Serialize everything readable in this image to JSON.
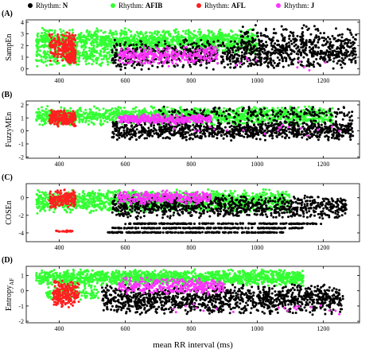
{
  "chart_data": {
    "type": "scatter",
    "legend": {
      "prefix": "Rhythm:",
      "placement": "top",
      "items": [
        {
          "name": "N",
          "color": "#000000"
        },
        {
          "name": "AFIB",
          "color": "#33ff33"
        },
        {
          "name": "AFL",
          "color": "#ff2020"
        },
        {
          "name": "J",
          "color": "#ff33ff"
        }
      ]
    },
    "xlabel": "mean RR interval (ms)",
    "xlim": [
      300,
      1310
    ],
    "xticks": [
      400,
      600,
      800,
      1000,
      1200
    ],
    "panels": [
      {
        "letter": "(A)",
        "ylabel": "SampEn",
        "ylabel_sub": "",
        "ylim": [
          -0.5,
          4.2
        ],
        "yticks": [
          0,
          1,
          2,
          3,
          4
        ],
        "series": [
          {
            "name": "AFIB",
            "color": "#33ff33",
            "clusters": [
              {
                "x": [
                  330,
                  1000
                ],
                "y": [
                  1.3,
                  3.5
                ],
                "n": 1400,
                "dist": "uniform"
              },
              {
                "x": [
                  330,
                  560
                ],
                "y": [
                  0.2,
                  2.0
                ],
                "n": 250,
                "dist": "uniform"
              }
            ]
          },
          {
            "name": "N",
            "color": "#000000",
            "clusters": [
              {
                "x": [
                  560,
                  1300
                ],
                "y": [
                  -0.1,
                  2.6
                ],
                "n": 900,
                "dist": "uniform"
              },
              {
                "x": [
                  950,
                  1300
                ],
                "y": [
                  1.0,
                  3.8
                ],
                "n": 250,
                "dist": "uniform"
              }
            ]
          },
          {
            "name": "AFL",
            "color": "#ff2020",
            "clusters": [
              {
                "x": [
                  370,
                  450
                ],
                "y": [
                  0.6,
                  3.2
                ],
                "n": 220,
                "dist": "uniform"
              },
              {
                "x": [
                  420,
                  450
                ],
                "y": [
                  0.4,
                  1.6
                ],
                "n": 60,
                "dist": "uniform"
              }
            ]
          },
          {
            "name": "J",
            "color": "#ff33ff",
            "clusters": [
              {
                "x": [
                  580,
                  880
                ],
                "y": [
                  0.3,
                  2.0
                ],
                "n": 320,
                "dist": "uniform"
              },
              {
                "x": [
                  700,
                  1230
                ],
                "y": [
                  -0.2,
                  1.2
                ],
                "n": 20,
                "dist": "uniform"
              }
            ]
          }
        ]
      },
      {
        "letter": "(B)",
        "ylabel": "FuzzyMEn",
        "ylabel_sub": "",
        "ylim": [
          -2.1,
          2.3
        ],
        "yticks": [
          -2,
          -1,
          0,
          1,
          2
        ],
        "series": [
          {
            "name": "AFIB",
            "color": "#33ff33",
            "clusters": [
              {
                "x": [
                  330,
                  1230
                ],
                "y": [
                  0.4,
                  1.9
                ],
                "n": 1400,
                "dist": "uniform"
              }
            ]
          },
          {
            "name": "N",
            "color": "#000000",
            "clusters": [
              {
                "x": [
                  560,
                  1290
                ],
                "y": [
                  -0.8,
                  0.9
                ],
                "n": 1000,
                "dist": "uniform"
              },
              {
                "x": [
                  700,
                  1290
                ],
                "y": [
                  0.8,
                  1.9
                ],
                "n": 200,
                "dist": "uniform"
              }
            ]
          },
          {
            "name": "AFL",
            "color": "#ff2020",
            "clusters": [
              {
                "x": [
                  370,
                  450
                ],
                "y": [
                  0.3,
                  1.7
                ],
                "n": 220,
                "dist": "uniform"
              }
            ]
          },
          {
            "name": "J",
            "color": "#ff33ff",
            "clusters": [
              {
                "x": [
                  580,
                  860
                ],
                "y": [
                  0.5,
                  1.3
                ],
                "n": 320,
                "dist": "uniform"
              },
              {
                "x": [
                  700,
                  1270
                ],
                "y": [
                  -0.5,
                  0.8
                ],
                "n": 20,
                "dist": "uniform"
              }
            ]
          }
        ]
      },
      {
        "letter": "(C)",
        "ylabel": "COSEn",
        "ylabel_sub": "",
        "ylim": [
          -5.0,
          1.6
        ],
        "yticks": [
          -4,
          -2,
          0
        ],
        "series": [
          {
            "name": "AFIB",
            "color": "#33ff33",
            "clusters": [
              {
                "x": [
                  330,
                  1100
                ],
                "y": [
                  -1.8,
                  1.0
                ],
                "n": 1400,
                "dist": "uniform"
              }
            ]
          },
          {
            "name": "N",
            "color": "#000000",
            "clusters": [
              {
                "x": [
                  560,
                  1270
                ],
                "y": [
                  -2.4,
                  0.4
                ],
                "n": 900,
                "dist": "uniform"
              },
              {
                "x": [
                  600,
                  1200
                ],
                "y": [
                  -3.0,
                  -2.9
                ],
                "n": 200,
                "dist": "uniform"
              },
              {
                "x": [
                  560,
                  1140
                ],
                "y": [
                  -3.5,
                  -3.4
                ],
                "n": 200,
                "dist": "uniform"
              },
              {
                "x": [
                  540,
                  1080
                ],
                "y": [
                  -4.0,
                  -3.9
                ],
                "n": 200,
                "dist": "uniform"
              }
            ]
          },
          {
            "name": "AFL",
            "color": "#ff2020",
            "clusters": [
              {
                "x": [
                  370,
                  450
                ],
                "y": [
                  -1.2,
                  1.0
                ],
                "n": 180,
                "dist": "uniform"
              },
              {
                "x": [
                  390,
                  440
                ],
                "y": [
                  -3.9,
                  -3.7
                ],
                "n": 25,
                "dist": "uniform"
              }
            ]
          },
          {
            "name": "J",
            "color": "#ff33ff",
            "clusters": [
              {
                "x": [
                  580,
                  860
                ],
                "y": [
                  -0.8,
                  0.9
                ],
                "n": 300,
                "dist": "uniform"
              }
            ]
          }
        ]
      },
      {
        "letter": "(D)",
        "ylabel": "Entropy",
        "ylabel_sub": "AF",
        "ylim": [
          -2.1,
          1.6
        ],
        "yticks": [
          -2,
          -1,
          0,
          1
        ],
        "series": [
          {
            "name": "AFIB",
            "color": "#33ff33",
            "clusters": [
              {
                "x": [
                  330,
                  1140
                ],
                "y": [
                  0.3,
                  1.4
                ],
                "n": 1500,
                "dist": "uniform"
              },
              {
                "x": [
                  360,
                  520
                ],
                "y": [
                  -0.6,
                  0.3
                ],
                "n": 120,
                "dist": "uniform"
              }
            ]
          },
          {
            "name": "N",
            "color": "#000000",
            "clusters": [
              {
                "x": [
                  530,
                  1260
                ],
                "y": [
                  -1.6,
                  0.5
                ],
                "n": 1200,
                "dist": "uniform"
              }
            ]
          },
          {
            "name": "AFL",
            "color": "#ff2020",
            "clusters": [
              {
                "x": [
                  380,
                  460
                ],
                "y": [
                  -1.1,
                  0.7
                ],
                "n": 220,
                "dist": "uniform"
              }
            ]
          },
          {
            "name": "J",
            "color": "#ff33ff",
            "clusters": [
              {
                "x": [
                  580,
                  900
                ],
                "y": [
                  -0.3,
                  0.9
                ],
                "n": 320,
                "dist": "uniform"
              },
              {
                "x": [
                  700,
                  1250
                ],
                "y": [
                  -1.7,
                  -0.6
                ],
                "n": 20,
                "dist": "uniform"
              }
            ]
          }
        ]
      }
    ]
  }
}
